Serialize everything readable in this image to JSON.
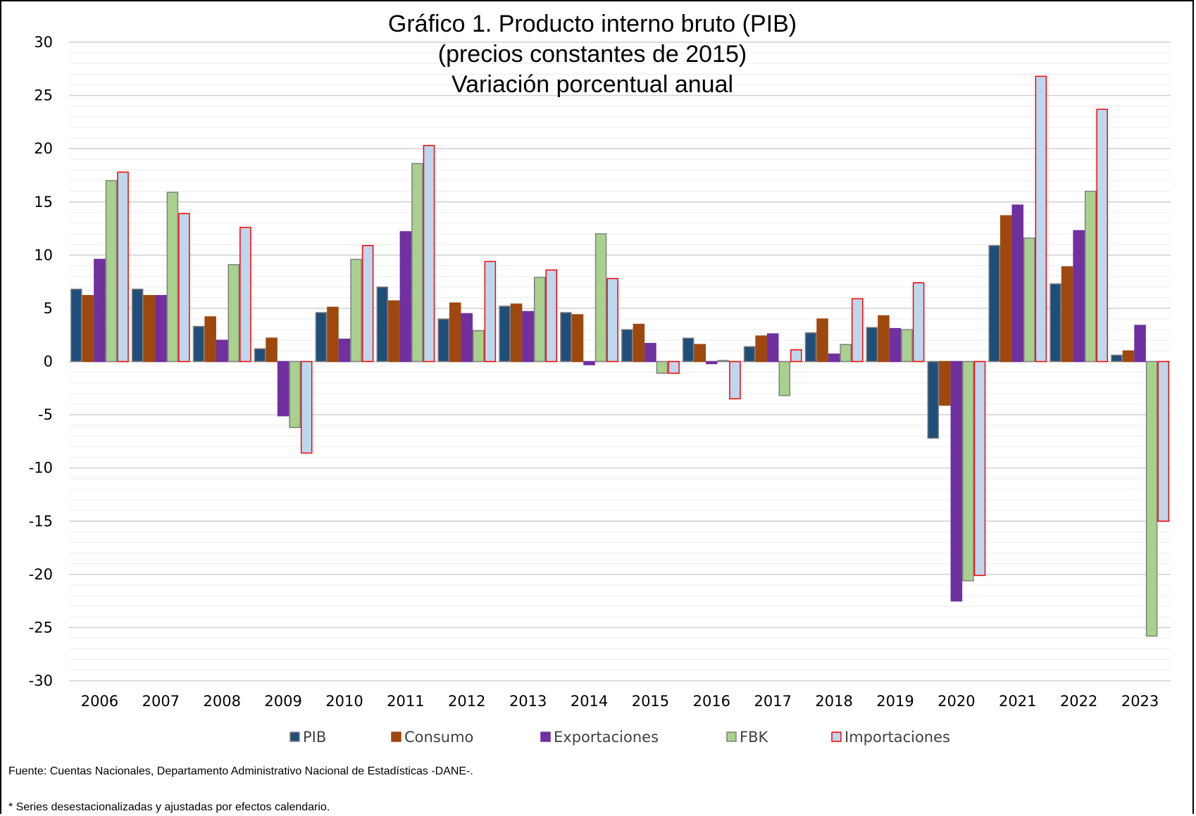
{
  "chart_data": {
    "type": "bar",
    "title": "Gráfico 1. Producto interno bruto (PIB)",
    "subtitle_lines": [
      "(precios constantes de 2015)",
      "Variación porcentual anual"
    ],
    "categories": [
      "2006",
      "2007",
      "2008",
      "2009",
      "2010",
      "2011",
      "2012",
      "2013",
      "2014",
      "2015",
      "2016",
      "2017",
      "2018",
      "2019",
      "2020",
      "2021",
      "2022",
      "2023"
    ],
    "ylim": [
      -30,
      30
    ],
    "yticks": [
      "30",
      "25",
      "20",
      "15",
      "10",
      "5",
      "0",
      "-5",
      "-10",
      "-15",
      "-20",
      "-25",
      "-30"
    ],
    "ytick_values": [
      30,
      25,
      20,
      15,
      10,
      5,
      0,
      -5,
      -10,
      -15,
      -20,
      -25,
      -30
    ],
    "grid": true,
    "legend_position": "bottom",
    "series": [
      {
        "name": "PIB",
        "color": "#1F4E79",
        "border": "#808080",
        "values": [
          6.8,
          6.8,
          3.3,
          1.2,
          4.6,
          7.0,
          4.0,
          5.2,
          4.6,
          3.0,
          2.2,
          1.4,
          2.7,
          3.2,
          -7.2,
          10.9,
          7.3,
          0.6
        ]
      },
      {
        "name": "Consumo",
        "color": "#9E480E",
        "border": "#9E480E",
        "values": [
          6.2,
          6.2,
          4.2,
          2.2,
          5.1,
          5.7,
          5.5,
          5.4,
          4.4,
          3.5,
          1.6,
          2.4,
          4.0,
          4.3,
          -4.1,
          13.7,
          8.9,
          1.0
        ]
      },
      {
        "name": "Exportaciones",
        "color": "#7030A0",
        "border": "#7030A0",
        "values": [
          9.6,
          6.2,
          2.0,
          -5.1,
          2.1,
          12.2,
          4.5,
          4.7,
          -0.3,
          1.7,
          -0.2,
          2.6,
          0.7,
          3.1,
          -22.5,
          14.7,
          12.3,
          3.4
        ]
      },
      {
        "name": "FBK",
        "color": "#A9D18E",
        "border": "#7F7F7F",
        "values": [
          17.0,
          15.9,
          9.1,
          -6.2,
          9.6,
          18.6,
          2.9,
          7.9,
          12.0,
          -1.1,
          0.1,
          -3.2,
          1.6,
          3.0,
          -20.6,
          11.6,
          16.0,
          -25.8
        ]
      },
      {
        "name": "Importaciones",
        "color": "#BDD7EE",
        "border": "#FF0000",
        "values": [
          17.8,
          13.9,
          12.6,
          -8.6,
          10.9,
          20.3,
          9.4,
          8.6,
          7.8,
          -1.1,
          -3.5,
          1.1,
          5.9,
          7.4,
          -20.1,
          26.8,
          23.7,
          -15.0
        ]
      }
    ]
  },
  "notes": {
    "source": "Fuente: Cuentas Nacionales, Departamento Administrativo Nacional de Estadísticas -DANE-.",
    "footnote": "* Series desestacionalizadas y ajustadas por efectos calendario."
  }
}
